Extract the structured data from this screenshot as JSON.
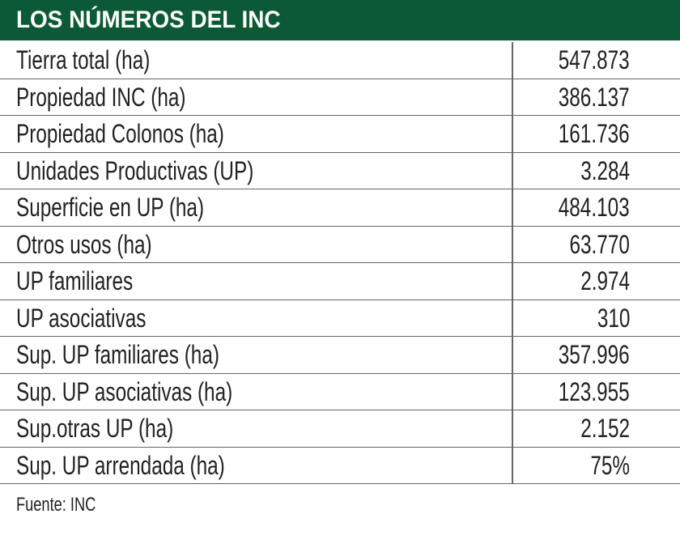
{
  "header": {
    "title": "LOS NÚMEROS DEL INC"
  },
  "table": {
    "rows": [
      [
        "Tierra total (ha)",
        "547.873"
      ],
      [
        "Propiedad INC (ha)",
        "386.137"
      ],
      [
        "Propiedad Colonos (ha)",
        "161.736"
      ],
      [
        "Unidades Productivas (UP)",
        "3.284"
      ],
      [
        "Superficie en UP (ha)",
        "484.103"
      ],
      [
        "Otros usos (ha)",
        "63.770"
      ],
      [
        "UP familiares",
        "2.974"
      ],
      [
        "UP asociativas",
        "310"
      ],
      [
        "Sup. UP familiares (ha)",
        "357.996"
      ],
      [
        "Sup. UP asociativas (ha)",
        "123.955"
      ],
      [
        "Sup.otras UP (ha)",
        "2.152"
      ],
      [
        "Sup. UP arrendada (ha)",
        "75%"
      ]
    ]
  },
  "source": "Fuente: INC"
}
